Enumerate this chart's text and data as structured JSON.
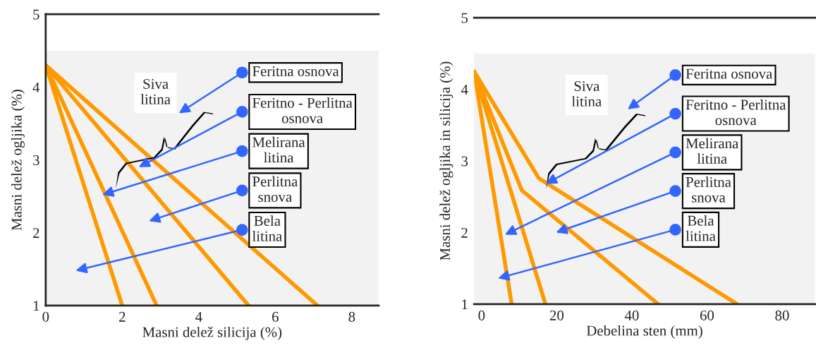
{
  "chart_data": [
    {
      "type": "line",
      "xlabel": "Masni delež silicija (%)",
      "ylabel": "Masni delež ogljika (%)",
      "xlim": [
        0,
        8.7
      ],
      "ylim": [
        1,
        5
      ],
      "xticks": [
        0,
        2,
        4,
        6,
        8
      ],
      "yticks": [
        1,
        2,
        3,
        4,
        5
      ],
      "grid": false,
      "legend": false,
      "bands": [
        {
          "axis": "y",
          "from": 1,
          "to": 4.5,
          "color": "#f2f2f2"
        }
      ],
      "series": [
        {
          "color": "#ff9900",
          "x": [
            0,
            2.0
          ],
          "values": [
            4.3,
            1
          ]
        },
        {
          "color": "#ff9900",
          "x": [
            0,
            2.9
          ],
          "values": [
            4.3,
            1
          ]
        },
        {
          "color": "#ff9900",
          "x": [
            0,
            5.3
          ],
          "values": [
            4.3,
            1
          ]
        },
        {
          "color": "#ff9900",
          "x": [
            0,
            7.1
          ],
          "values": [
            4.3,
            1
          ]
        }
      ],
      "annotations": [
        "Siva\nlitina",
        "Feritna osnova",
        {
          "text": "Feritno - Perlitna\nosnova",
          "x": 2.43,
          "y": 2.9
        },
        "Melirana\nlitina",
        "Perlitna\nsnova",
        "Bela\nlitina"
      ]
    },
    {
      "type": "line",
      "xlabel": "Debelina sten (mm)",
      "ylabel": "Masni delež ogljika in silicija (%)",
      "xlim": [
        -2,
        88.8
      ],
      "ylim": [
        1,
        5
      ],
      "xticks": [
        0,
        20,
        40,
        60,
        80
      ],
      "yticks": [
        1,
        2,
        3,
        4,
        5
      ],
      "grid": false,
      "legend": false,
      "bands": [
        {
          "axis": "y",
          "from": 1,
          "to": 4.5,
          "color": "#f2f2f2"
        }
      ],
      "series": [
        {
          "color": "#ff9900",
          "x": [
            -2,
            8
          ],
          "values": [
            4.25,
            1
          ]
        },
        {
          "color": "#ff9900",
          "x": [
            -2,
            17
          ],
          "values": [
            4.25,
            1
          ]
        },
        {
          "color": "#ff9900",
          "x": [
            -2,
            10.7,
            47
          ],
          "values": [
            4.25,
            2.59,
            1
          ]
        },
        {
          "color": "#ff9900",
          "x": [
            -2,
            15.2,
            68
          ],
          "values": [
            4.25,
            2.76,
            1
          ]
        }
      ],
      "annotations": [
        "Siva\nlitina",
        "Feritna osnova",
        "Feritno - Perlitna\nosnova",
        {
          "text": "Melirana\nlitina",
          "x": 6.2,
          "y": 1.97
        },
        "Perlitna\nsnova",
        "Bela\nlitina"
      ]
    }
  ]
}
